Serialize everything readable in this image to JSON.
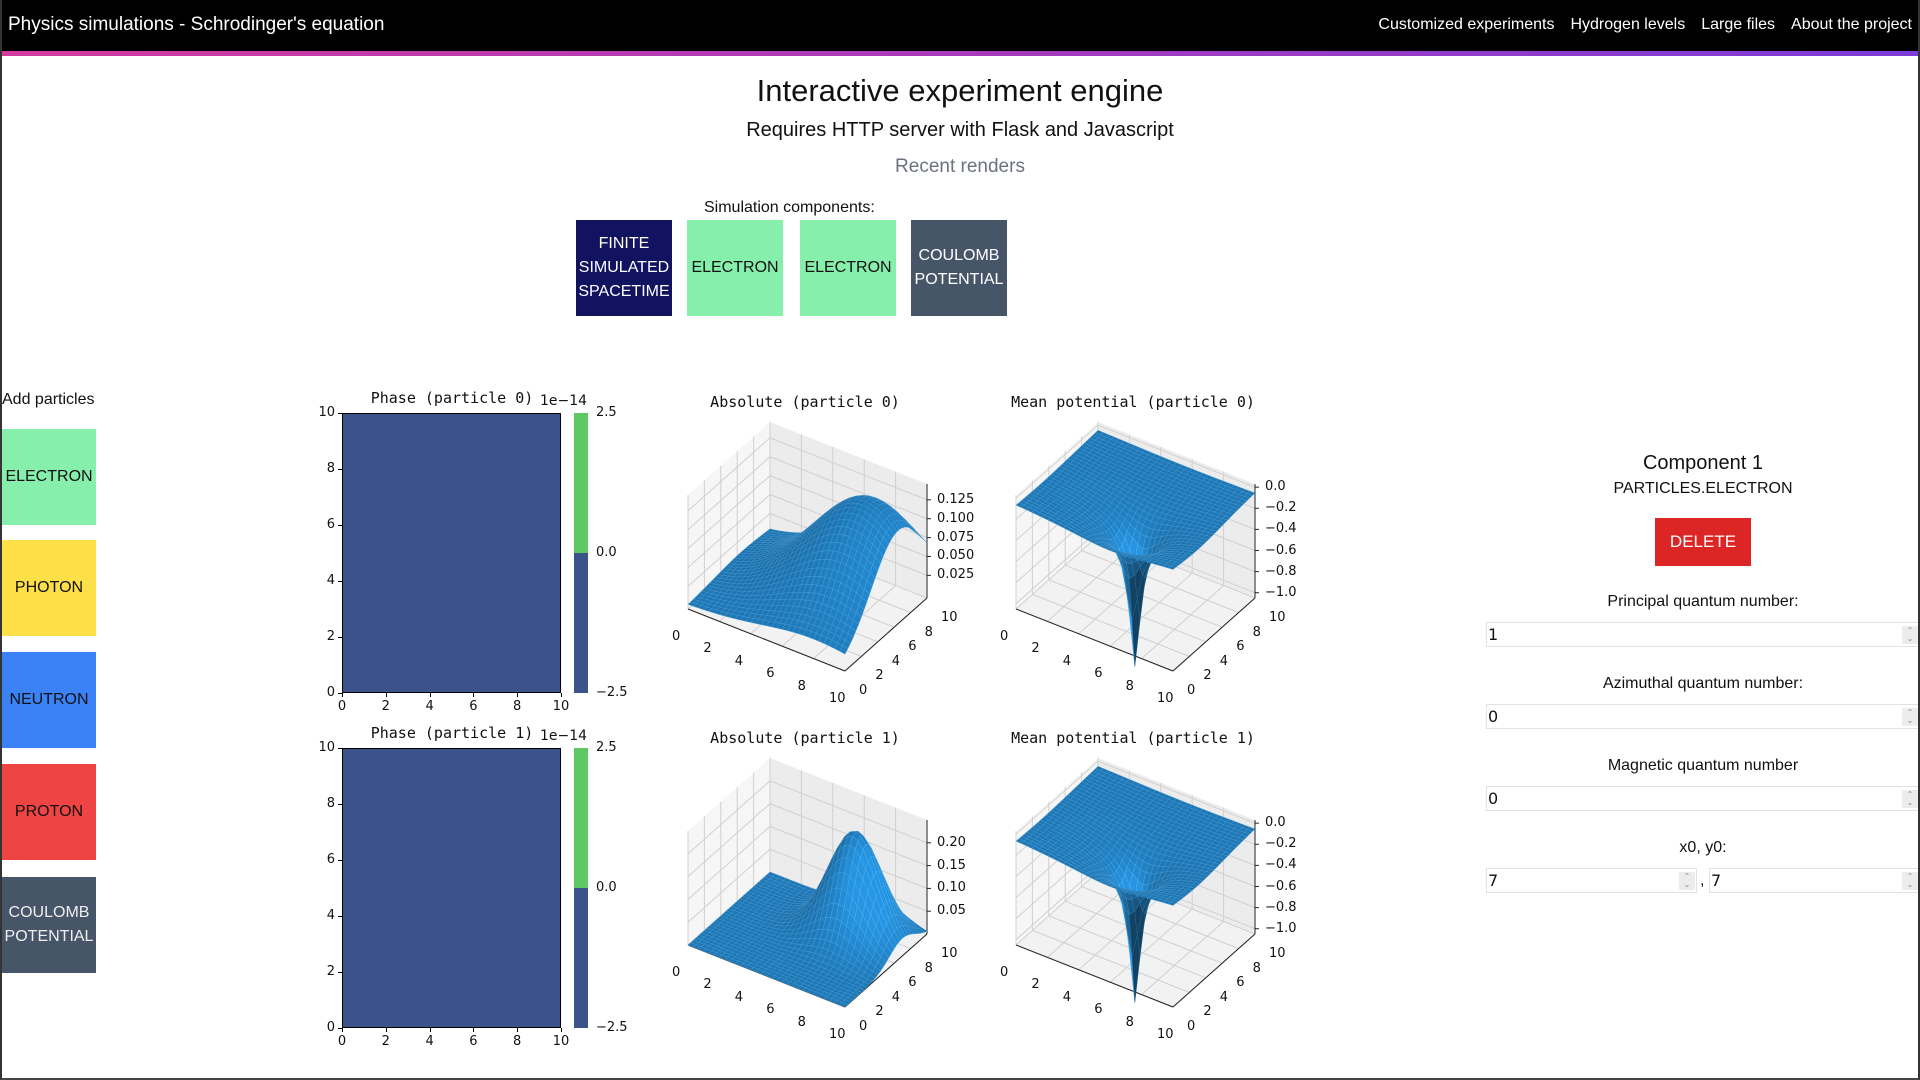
{
  "header": {
    "title": "Physics simulations - Schrodinger's equation",
    "nav": [
      "Customized experiments",
      "Hydrogen levels",
      "Large files",
      "About the project"
    ]
  },
  "main": {
    "title": "Interactive experiment engine",
    "subtitle": "Requires HTTP server with Flask and Javascript",
    "recent": "Recent renders",
    "components_label": "Simulation components:",
    "components": [
      {
        "label": "FINITE SIMULATED SPACETIME",
        "bg": "#111360",
        "fg": "#ffffff"
      },
      {
        "label": "ELECTRON",
        "bg": "#86efac",
        "fg": "#111111"
      },
      {
        "label": "ELECTRON",
        "bg": "#86efac",
        "fg": "#111111"
      },
      {
        "label": "COULOMB POTENTIAL",
        "bg": "#475569",
        "fg": "#ffffff"
      }
    ]
  },
  "sidebar": {
    "label": "Add particles",
    "items": [
      {
        "label": "ELECTRON",
        "bg": "#86efac",
        "fg": "#111"
      },
      {
        "label": "PHOTON",
        "bg": "#fde047",
        "fg": "#111"
      },
      {
        "label": "NEUTRON",
        "bg": "#3b82f6",
        "fg": "#111"
      },
      {
        "label": "PROTON",
        "bg": "#ef4444",
        "fg": "#111"
      },
      {
        "label": "COULOMB POTENTIAL",
        "bg": "#475569",
        "fg": "#eee"
      }
    ]
  },
  "plots": {
    "phase": [
      {
        "title": "Phase (particle 0)",
        "exponent": "1e−14",
        "xticks": [
          "0",
          "2",
          "4",
          "6",
          "8",
          "10"
        ],
        "yticks": [
          "0",
          "2",
          "4",
          "6",
          "8",
          "10"
        ],
        "cbar_ticks": [
          "2.5",
          "0.0",
          "−2.5"
        ],
        "fill": "#3b528b",
        "cbar_top": "#5ec962"
      },
      {
        "title": "Phase (particle 1)",
        "exponent": "1e−14",
        "xticks": [
          "0",
          "2",
          "4",
          "6",
          "8",
          "10"
        ],
        "yticks": [
          "0",
          "2",
          "4",
          "6",
          "8",
          "10"
        ],
        "cbar_ticks": [
          "2.5",
          "0.0",
          "−2.5"
        ],
        "fill": "#3b528b",
        "cbar_top": "#5ec962"
      }
    ],
    "surfaces": [
      {
        "title": "Absolute (particle 0)",
        "zlim": [
          -0.005,
          0.146
        ],
        "zticks": [
          "0.025",
          "0.050",
          "0.075",
          "0.100",
          "0.125"
        ],
        "xticks": [
          "0",
          "2",
          "4",
          "6",
          "8",
          "10"
        ],
        "yticks": [
          "0",
          "2",
          "4",
          "6",
          "8",
          "10"
        ]
      },
      {
        "title": "Mean potential (particle 0)",
        "zlim": [
          -1.05,
          0.03
        ],
        "zticks": [
          "−1.0",
          "−0.8",
          "−0.6",
          "−0.4",
          "−0.2",
          "0.0"
        ],
        "xticks": [
          "0",
          "2",
          "4",
          "6",
          "8",
          "10"
        ],
        "yticks": [
          "0",
          "2",
          "4",
          "6",
          "8",
          "10"
        ]
      },
      {
        "title": "Absolute (particle 1)",
        "zlim": [
          0.0,
          0.25
        ],
        "zticks": [
          "0.05",
          "0.10",
          "0.15",
          "0.20"
        ],
        "xticks": [
          "0",
          "2",
          "4",
          "6",
          "8",
          "10"
        ],
        "yticks": [
          "0",
          "2",
          "4",
          "6",
          "8",
          "10"
        ]
      },
      {
        "title": "Mean potential (particle 1)",
        "zlim": [
          -1.05,
          0.03
        ],
        "zticks": [
          "−1.0",
          "−0.8",
          "−0.6",
          "−0.4",
          "−0.2",
          "0.0"
        ],
        "xticks": [
          "0",
          "2",
          "4",
          "6",
          "8",
          "10"
        ],
        "yticks": [
          "0",
          "2",
          "4",
          "6",
          "8",
          "10"
        ]
      }
    ],
    "surface_color": "#1f77b4"
  },
  "panel": {
    "title": "Component 1",
    "type": "PARTICLES.ELECTRON",
    "delete": "DELETE",
    "principal_label": "Principal quantum number:",
    "principal": "1",
    "azimuthal_label": "Azimuthal quantum number:",
    "azimuthal": "0",
    "magnetic_label": "Magnetic quantum number",
    "magnetic": "0",
    "xy_label": "x0, y0:",
    "x0": "7",
    "sep": ",",
    "y0": "7"
  }
}
